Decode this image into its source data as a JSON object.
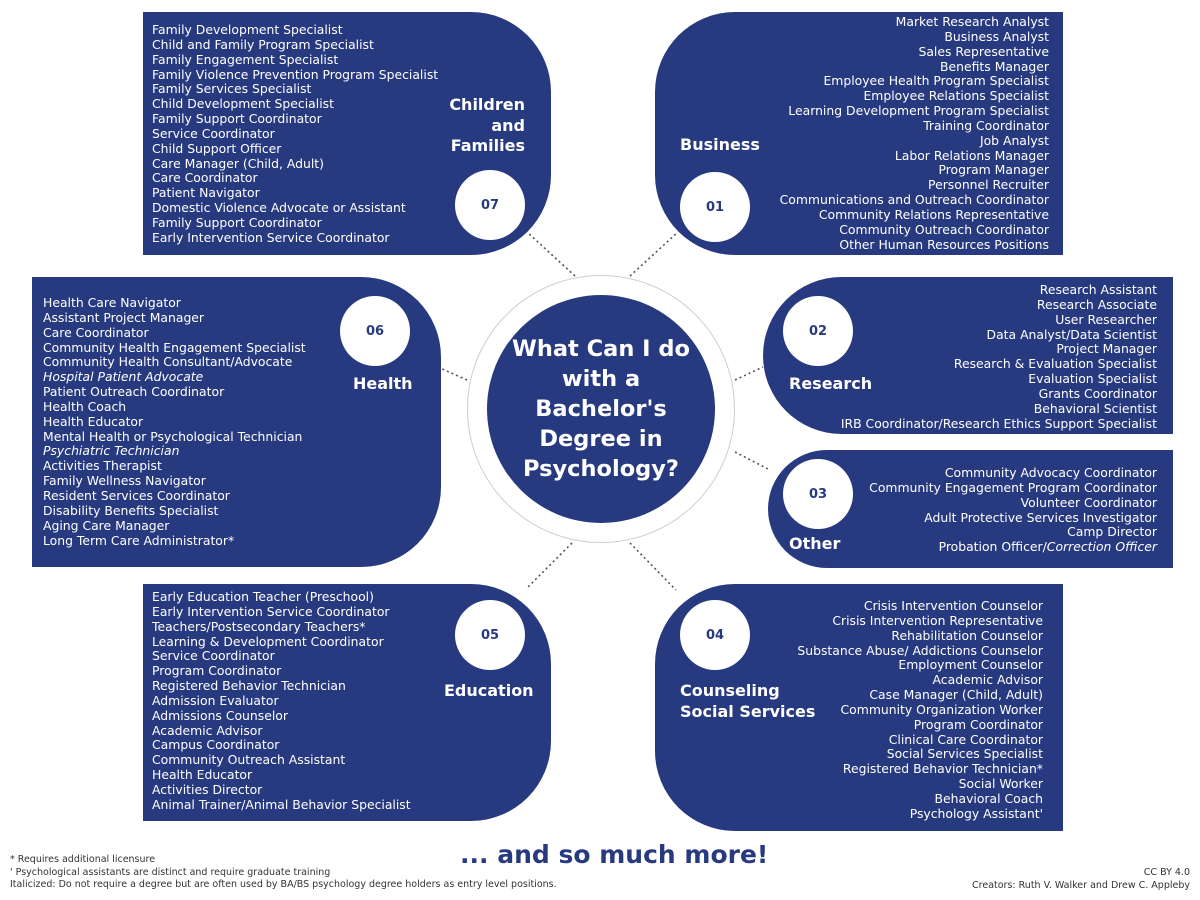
{
  "center_title": "What Can I do with a Bachelor's Degree in Psychology?",
  "more_text": "... and so much more!",
  "footnotes": [
    "* Requires additional licensure",
    "' Psychological assistants are distinct and require graduate training",
    "Italicized: Do not require a degree but are often used by BA/BS psychology degree holders as entry level positions."
  ],
  "license": "CC BY 4.0",
  "creators": "Creators: Ruth V. Walker and Drew C. Appleby",
  "colors": {
    "panel": "#273a80",
    "ring": "#cfcfcf"
  },
  "categories": {
    "business": {
      "number": "01",
      "title": "Business",
      "jobs": [
        {
          "text": "Market Research Analyst"
        },
        {
          "text": "Business Analyst"
        },
        {
          "text": "Sales Representative"
        },
        {
          "text": "Benefits Manager"
        },
        {
          "text": "Employee Health Program Specialist"
        },
        {
          "text": "Employee Relations Specialist"
        },
        {
          "text": "Learning Development Program Specialist"
        },
        {
          "text": "Training Coordinator"
        },
        {
          "text": "Job Analyst"
        },
        {
          "text": "Labor Relations Manager"
        },
        {
          "text": "Program Manager"
        },
        {
          "text": "Personnel Recruiter"
        },
        {
          "text": "Communications and Outreach Coordinator"
        },
        {
          "text": "Community Relations Representative"
        },
        {
          "text": "Community Outreach Coordinator"
        },
        {
          "text": "Other Human Resources Positions"
        }
      ]
    },
    "research": {
      "number": "02",
      "title": "Research",
      "jobs": [
        {
          "text": "Research Assistant"
        },
        {
          "text": "Research Associate"
        },
        {
          "text": "User Researcher"
        },
        {
          "text": "Data Analyst/Data Scientist"
        },
        {
          "text": "Project Manager"
        },
        {
          "text": "Research & Evaluation Specialist"
        },
        {
          "text": "Evaluation Specialist"
        },
        {
          "text": "Grants Coordinator"
        },
        {
          "text": "Behavioral Scientist"
        },
        {
          "text": "IRB Coordinator/Research Ethics Support Specialist"
        }
      ]
    },
    "other": {
      "number": "03",
      "title": "Other",
      "jobs": [
        {
          "text": "Community Advocacy Coordinator"
        },
        {
          "text": "Community Engagement Program Coordinator"
        },
        {
          "text": "Volunteer Coordinator"
        },
        {
          "text": "Adult Protective Services Investigator"
        },
        {
          "text": "Camp Director"
        },
        {
          "text": "Probation Officer/",
          "italic_part": "Correction Officer"
        }
      ]
    },
    "counseling": {
      "number": "04",
      "title_line1": "Counseling",
      "title_line2": "Social Services",
      "jobs": [
        {
          "text": "Crisis Intervention Counselor"
        },
        {
          "text": "Crisis Intervention Representative"
        },
        {
          "text": "Rehabilitation Counselor"
        },
        {
          "text": "Substance Abuse/ Addictions Counselor"
        },
        {
          "text": "Employment Counselor"
        },
        {
          "text": "Academic Advisor"
        },
        {
          "text": "Case Manager (Child, Adult)"
        },
        {
          "text": "Community Organization Worker"
        },
        {
          "text": "Program Coordinator"
        },
        {
          "text": "Clinical Care Coordinator"
        },
        {
          "text": "Social Services Specialist"
        },
        {
          "text": "Registered Behavior Technician*"
        },
        {
          "text": "Social Worker"
        },
        {
          "text": "Behavioral Coach"
        },
        {
          "text": "Psychology Assistant'"
        }
      ]
    },
    "education": {
      "number": "05",
      "title": "Education",
      "jobs": [
        {
          "text": "Early Education Teacher (Preschool)"
        },
        {
          "text": "Early Intervention Service Coordinator"
        },
        {
          "text": "Teachers/Postsecondary Teachers*"
        },
        {
          "text": "Learning & Development Coordinator"
        },
        {
          "text": "Service Coordinator"
        },
        {
          "text": "Program Coordinator"
        },
        {
          "text": "Registered Behavior Technician"
        },
        {
          "text": "Admission Evaluator"
        },
        {
          "text": "Admissions Counselor"
        },
        {
          "text": "Academic Advisor"
        },
        {
          "text": "Campus Coordinator"
        },
        {
          "text": "Community Outreach Assistant"
        },
        {
          "text": "Health Educator"
        },
        {
          "text": "Activities Director"
        },
        {
          "text": "Animal Trainer/Animal Behavior Specialist"
        }
      ]
    },
    "health": {
      "number": "06",
      "title": "Health",
      "jobs": [
        {
          "text": "Health Care Navigator"
        },
        {
          "text": "Assistant Project Manager"
        },
        {
          "text": "Care Coordinator"
        },
        {
          "text": "Community Health Engagement Specialist"
        },
        {
          "text": "Community Health Consultant/Advocate"
        },
        {
          "text": "Hospital Patient Advocate",
          "italic": true
        },
        {
          "text": "Patient Outreach Coordinator"
        },
        {
          "text": "Health Coach"
        },
        {
          "text": "Health Educator"
        },
        {
          "text": "Mental Health or Psychological Technician"
        },
        {
          "text": "Psychiatric Technician",
          "italic": true
        },
        {
          "text": "Activities Therapist"
        },
        {
          "text": "Family Wellness Navigator"
        },
        {
          "text": "Resident Services Coordinator"
        },
        {
          "text": "Disability Benefits Specialist"
        },
        {
          "text": "Aging Care Manager"
        },
        {
          "text": "Long Term Care Administrator*"
        }
      ]
    },
    "children": {
      "number": "07",
      "title_line1": "Children",
      "title_line2": "and",
      "title_line3": "Families",
      "jobs": [
        {
          "text": "Family Development Specialist"
        },
        {
          "text": "Child and Family Program Specialist"
        },
        {
          "text": "Family Engagement Specialist"
        },
        {
          "text": "Family Violence Prevention Program Specialist"
        },
        {
          "text": "Family Services Specialist"
        },
        {
          "text": "Child Development Specialist"
        },
        {
          "text": "Family Support Coordinator"
        },
        {
          "text": "Service Coordinator"
        },
        {
          "text": "Child Support Officer"
        },
        {
          "text": "Care Manager (Child, Adult)"
        },
        {
          "text": "Care Coordinator"
        },
        {
          "text": "Patient Navigator"
        },
        {
          "text": "Domestic Violence Advocate or Assistant"
        },
        {
          "text": "Family Support Coordinator"
        },
        {
          "text": "Early Intervention Service Coordinator"
        }
      ]
    }
  }
}
